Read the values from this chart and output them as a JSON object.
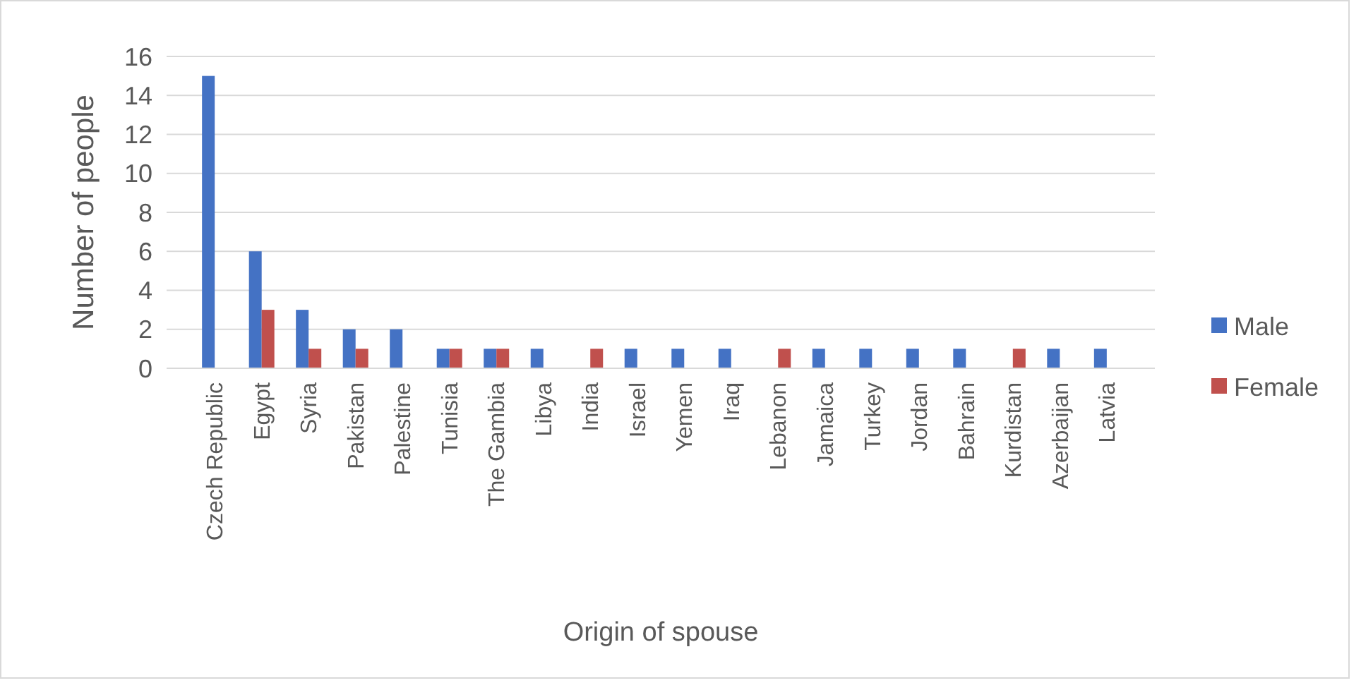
{
  "chart_data": {
    "type": "bar",
    "xlabel": "Origin of spouse",
    "ylabel": "Number of people",
    "categories": [
      "Czech Republic",
      "Egypt",
      "Syria",
      "Pakistan",
      "Palestine",
      "Tunisia",
      "The Gambia",
      "Libya",
      "India",
      "Israel",
      "Yemen",
      "Iraq",
      "Lebanon",
      "Jamaica",
      "Turkey",
      "Jordan",
      "Bahrain",
      "Kurdistan",
      "Azerbaijan",
      "Latvia"
    ],
    "series": [
      {
        "name": "Male",
        "color": "#4472c4",
        "values": [
          15,
          6,
          3,
          2,
          2,
          1,
          1,
          1,
          0,
          1,
          1,
          1,
          0,
          1,
          1,
          1,
          1,
          0,
          1,
          1
        ]
      },
      {
        "name": "Female",
        "color": "#c0504d",
        "values": [
          0,
          3,
          1,
          1,
          0,
          1,
          1,
          0,
          1,
          0,
          0,
          0,
          1,
          0,
          0,
          0,
          0,
          1,
          0,
          0
        ]
      }
    ],
    "ylim": [
      0,
      16
    ],
    "yticks": [
      0,
      2,
      4,
      6,
      8,
      10,
      12,
      14,
      16
    ],
    "grid": "y",
    "legend": "right"
  }
}
